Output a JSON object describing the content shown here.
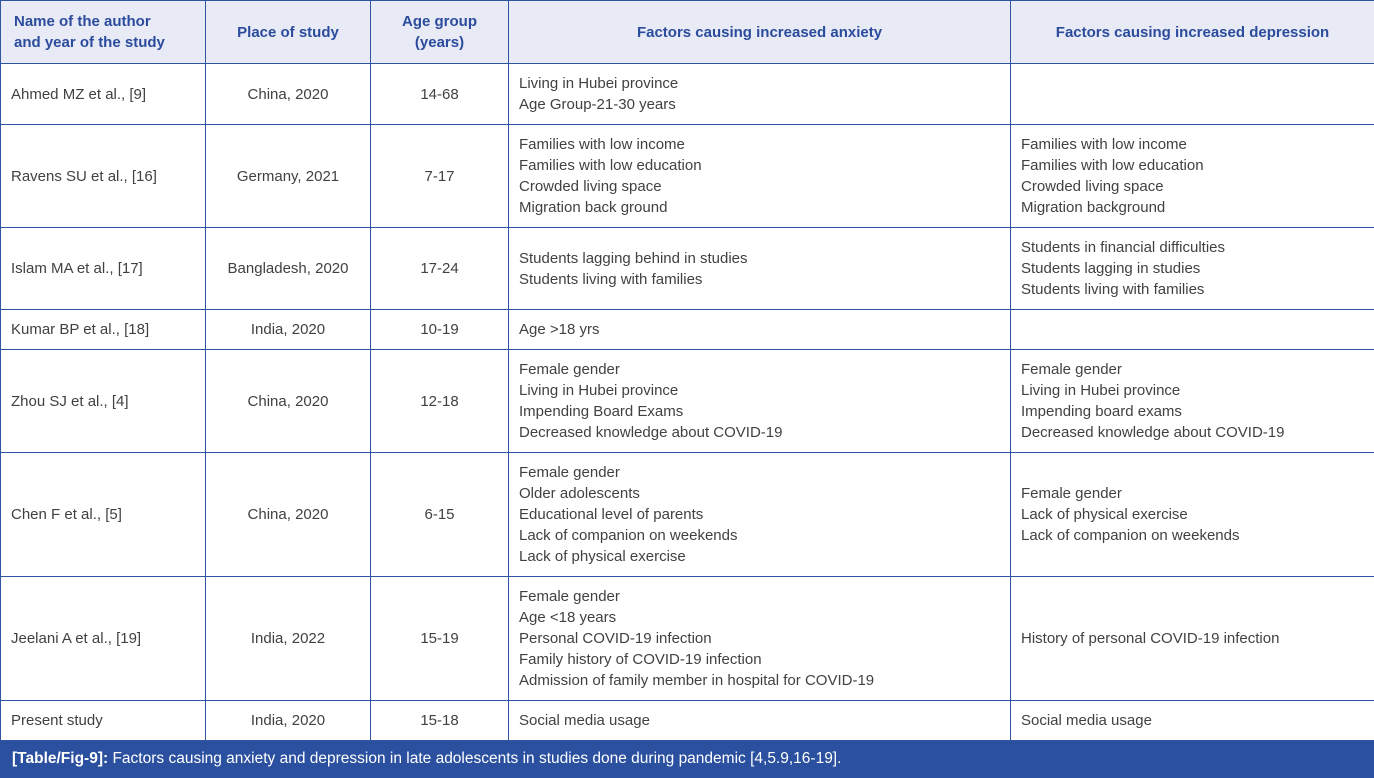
{
  "colors": {
    "header_bg": "#e8eaf6",
    "header_text": "#2b4c9c",
    "border": "#31549e",
    "body_text": "#414141",
    "caption_bg": "#2b509f",
    "caption_text": "#ffffff"
  },
  "table": {
    "columns": [
      {
        "key": "author",
        "label": "Name of the author\nand year of the study"
      },
      {
        "key": "place",
        "label": "Place of study"
      },
      {
        "key": "age_group",
        "label": "Age group\n(years)"
      },
      {
        "key": "anxiety",
        "label": "Factors causing increased anxiety"
      },
      {
        "key": "depression",
        "label": "Factors causing increased depression"
      }
    ],
    "rows": [
      {
        "author": "Ahmed MZ et al., [9]",
        "place": "China, 2020",
        "age_group": "14-68",
        "anxiety": [
          "Living in Hubei province",
          "Age Group-21-30 years"
        ],
        "depression": []
      },
      {
        "author": "Ravens SU et al., [16]",
        "place": "Germany, 2021",
        "age_group": "7-17",
        "anxiety": [
          "Families with low income",
          "Families with low education",
          "Crowded living space",
          "Migration back ground"
        ],
        "depression": [
          "Families with low income",
          "Families with low education",
          "Crowded living space",
          "Migration background"
        ]
      },
      {
        "author": "Islam MA et al., [17]",
        "place": "Bangladesh, 2020",
        "age_group": "17-24",
        "anxiety": [
          "Students lagging behind in studies",
          "Students living with families"
        ],
        "depression": [
          "Students in financial difficulties",
          "Students lagging in studies",
          "Students living with families"
        ]
      },
      {
        "author": "Kumar BP et al., [18]",
        "place": "India, 2020",
        "age_group": "10-19",
        "anxiety": [
          "Age >18 yrs"
        ],
        "depression": []
      },
      {
        "author": "Zhou SJ et al., [4]",
        "place": "China, 2020",
        "age_group": "12-18",
        "anxiety": [
          "Female gender",
          "Living in Hubei province",
          "Impending Board Exams",
          "Decreased knowledge about COVID-19"
        ],
        "depression": [
          "Female gender",
          "Living in Hubei province",
          "Impending board exams",
          "Decreased knowledge about COVID-19"
        ]
      },
      {
        "author": "Chen F et al., [5]",
        "place": "China, 2020",
        "age_group": "6-15",
        "anxiety": [
          "Female gender",
          "Older adolescents",
          "Educational level of parents",
          "Lack of companion on weekends",
          "Lack of physical exercise"
        ],
        "depression": [
          "Female gender",
          "Lack of physical exercise",
          "Lack of companion on weekends"
        ]
      },
      {
        "author": "Jeelani A et al., [19]",
        "place": "India, 2022",
        "age_group": "15-19",
        "anxiety": [
          "Female gender",
          "Age <18 years",
          "Personal COVID-19 infection",
          "Family history of COVID-19 infection",
          "Admission of family member in hospital for COVID-19"
        ],
        "depression": [
          "History of personal COVID-19 infection"
        ]
      },
      {
        "author": "Present study",
        "place": "India, 2020",
        "age_group": "15-18",
        "anxiety": [
          "Social media usage"
        ],
        "depression": [
          "Social media usage"
        ]
      }
    ]
  },
  "caption": {
    "label": "[Table/Fig-9]:",
    "text": "Factors causing anxiety and depression in late adolescents in studies done during pandemic [4,5.9,16-19]."
  }
}
